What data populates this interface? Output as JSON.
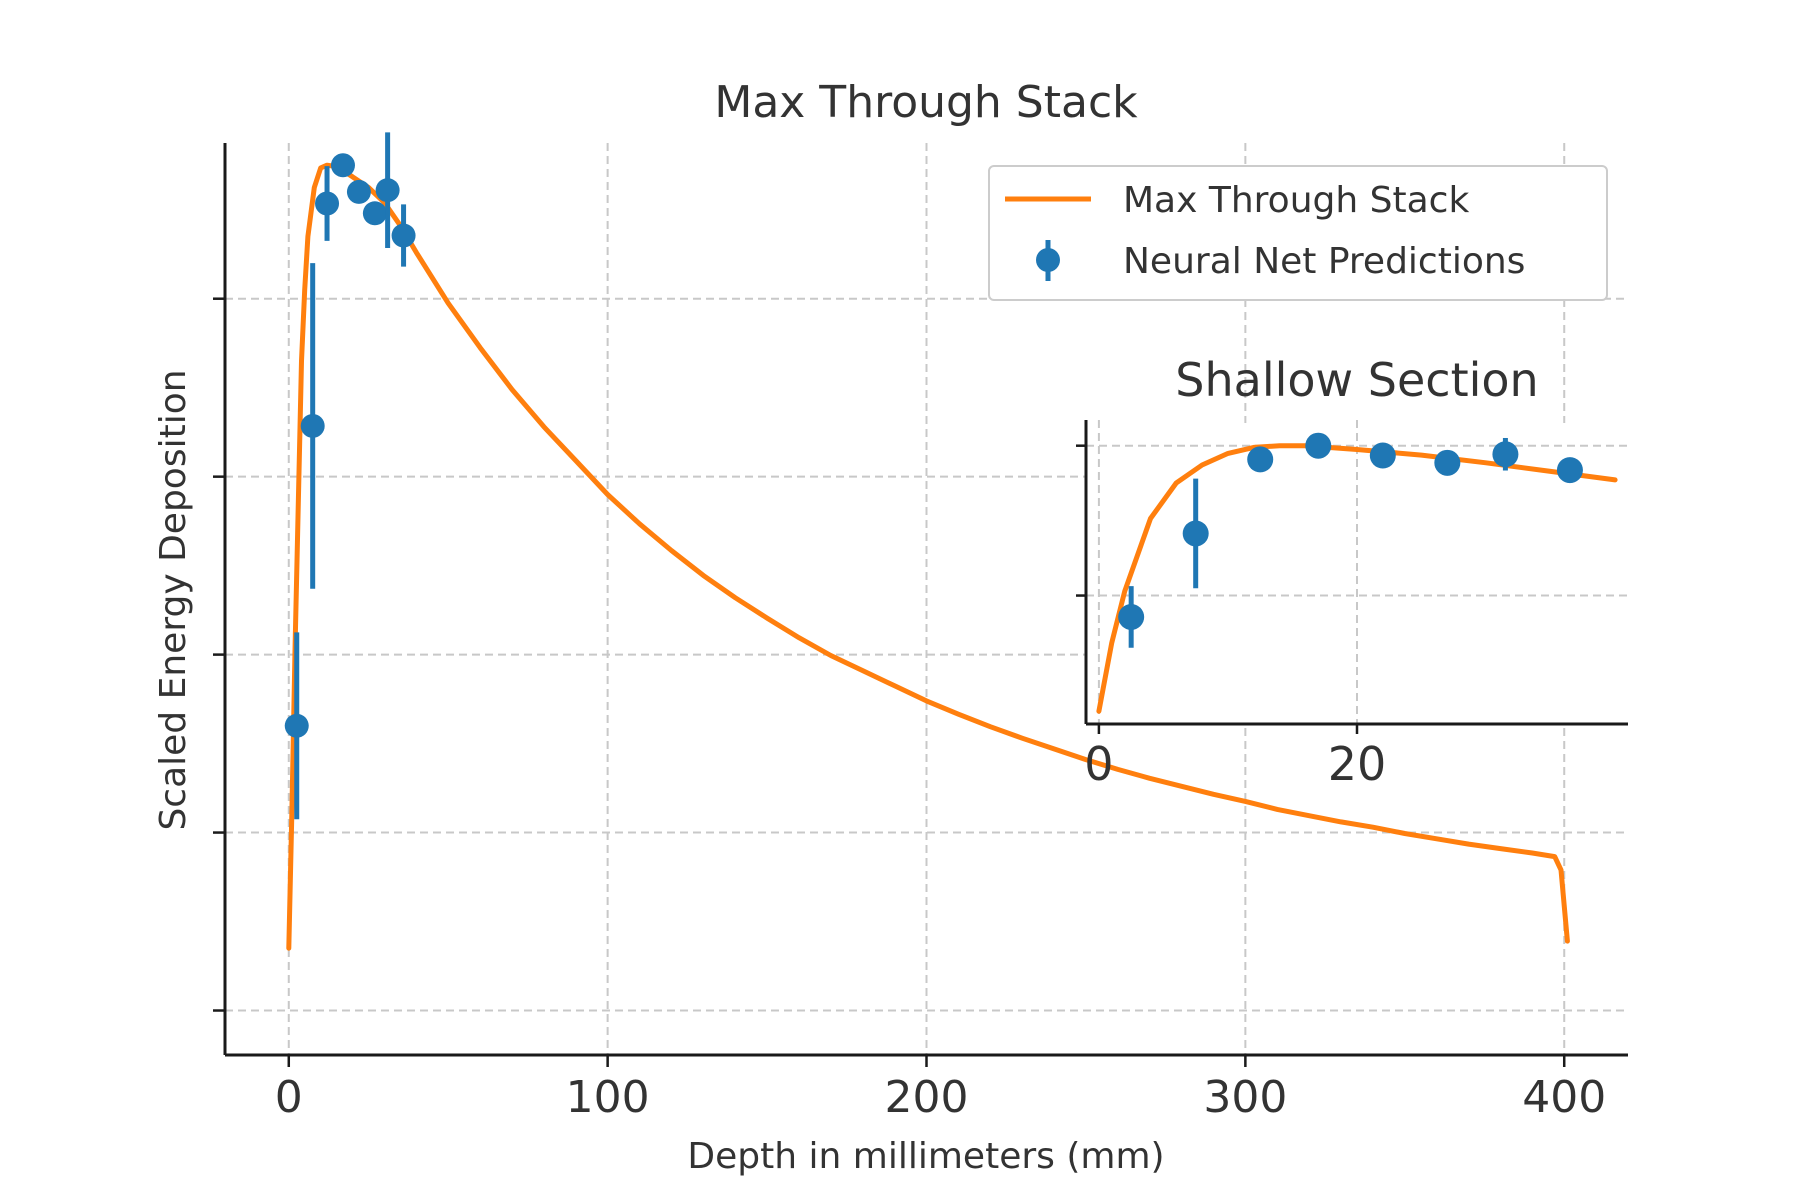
{
  "chart_data": [
    {
      "type": "line",
      "title": "Max Through Stack",
      "xlabel": "Depth in millimeters (mm)",
      "ylabel": "Scaled Energy Deposition",
      "xlim": [
        -20,
        420
      ],
      "ylim": [
        0,
        1.025
      ],
      "x_ticks": [
        0,
        100,
        200,
        300,
        400
      ],
      "x_tick_labels": [
        "0",
        "100",
        "200",
        "300",
        "400"
      ],
      "y_ticks": [
        0.05,
        0.25,
        0.45,
        0.65,
        0.85,
        1.05
      ],
      "y_tick_labels": [],
      "grid": true,
      "legend_position": "upper-right",
      "series": [
        {
          "name": "Max Through Stack",
          "kind": "line",
          "x": [
            0,
            1,
            2,
            3,
            4,
            5,
            6,
            8,
            10,
            12,
            14,
            16,
            20,
            25,
            30,
            35,
            40,
            50,
            60,
            70,
            80,
            90,
            100,
            110,
            120,
            130,
            140,
            150,
            160,
            170,
            180,
            190,
            200,
            210,
            220,
            230,
            240,
            250,
            260,
            270,
            280,
            290,
            300,
            310,
            320,
            330,
            340,
            350,
            360,
            370,
            380,
            390,
            397,
            399,
            401
          ],
          "y": [
            0.12,
            0.28,
            0.46,
            0.62,
            0.78,
            0.86,
            0.92,
            0.975,
            0.997,
            1.0,
            0.999,
            0.996,
            0.987,
            0.975,
            0.958,
            0.932,
            0.902,
            0.845,
            0.795,
            0.748,
            0.706,
            0.668,
            0.63,
            0.597,
            0.567,
            0.539,
            0.514,
            0.491,
            0.469,
            0.449,
            0.432,
            0.415,
            0.398,
            0.383,
            0.369,
            0.356,
            0.344,
            0.332,
            0.321,
            0.311,
            0.302,
            0.293,
            0.285,
            0.276,
            0.269,
            0.262,
            0.256,
            0.249,
            0.243,
            0.237,
            0.232,
            0.227,
            0.223,
            0.208,
            0.128
          ]
        },
        {
          "name": "Neural Net Predictions",
          "kind": "errorbar",
          "x": [
            2.5,
            7.5,
            12,
            17,
            22,
            27,
            31,
            36
          ],
          "y": [
            0.37,
            0.707,
            0.957,
            1.0,
            0.97,
            0.946,
            0.972,
            0.921
          ],
          "yerr": [
            0.105,
            0.183,
            0.042,
            0.0,
            0.0,
            0.0,
            0.065,
            0.035
          ]
        }
      ]
    },
    {
      "type": "line",
      "title": "Shallow Section",
      "xlim": [
        -1,
        41
      ],
      "ylim": [
        0.35,
        1.06
      ],
      "x_ticks": [
        0,
        20
      ],
      "x_tick_labels": [
        "0",
        "20"
      ],
      "y_ticks": [
        0.65,
        1.0
      ],
      "y_tick_labels": [],
      "grid": true,
      "series": [
        {
          "name": "Max Through Stack",
          "kind": "line",
          "x": [
            0,
            1,
            2,
            4,
            6,
            8,
            10,
            12,
            14,
            16,
            20,
            25,
            30,
            35,
            40
          ],
          "y": [
            0.38,
            0.54,
            0.66,
            0.83,
            0.913,
            0.955,
            0.982,
            0.996,
            1.0,
            1.0,
            0.991,
            0.978,
            0.96,
            0.94,
            0.92
          ]
        },
        {
          "name": "Neural Net Predictions",
          "kind": "errorbar",
          "x": [
            2.5,
            7.5,
            12.5,
            17,
            22,
            27,
            31.5,
            36.5
          ],
          "y": [
            0.6,
            0.795,
            0.968,
            1.0,
            0.977,
            0.96,
            0.98,
            0.943
          ],
          "yerr": [
            0.072,
            0.128,
            0.0,
            0.0,
            0.0,
            0.0,
            0.038,
            0.0
          ]
        }
      ]
    }
  ],
  "colors": {
    "line": "#ff7f0e",
    "points": "#1f77b4",
    "grid": "#c8c8c8",
    "text": "#333333"
  }
}
